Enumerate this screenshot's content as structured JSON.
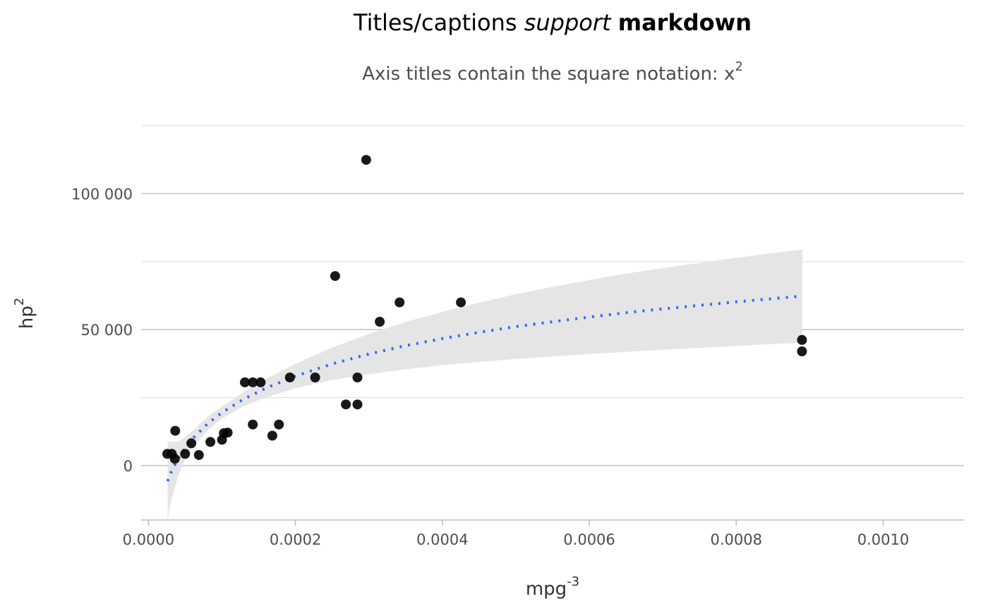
{
  "chart_data": {
    "type": "scatter",
    "title": {
      "prefix": "Titles/captions ",
      "italic": "support",
      "middle": " ",
      "bold": "markdown"
    },
    "subtitle": {
      "text": "Axis titles contain the square notation: x",
      "sup": "2"
    },
    "xlabel": {
      "text": "mpg",
      "sup": "-3"
    },
    "ylabel": {
      "text": "hp",
      "sup": "2"
    },
    "xlim": [
      -1e-05,
      0.00111
    ],
    "ylim": [
      -20000,
      125000
    ],
    "x_ticks": [
      0,
      0.0002,
      0.0004,
      0.0006,
      0.0008,
      0.001
    ],
    "x_tick_labels": [
      "0.0000",
      "0.0002",
      "0.0004",
      "0.0006",
      "0.0008",
      "0.0010"
    ],
    "y_ticks": [
      0,
      50000,
      100000
    ],
    "y_tick_labels": [
      "0",
      "50 000",
      "100 000"
    ],
    "y_minor_ticks": [
      25000,
      75000,
      125000
    ],
    "grid": true,
    "colors": {
      "points": "#000000",
      "trend": "#3366ff",
      "band": "#e5e5e5"
    },
    "points": [
      [
        2.55e-05,
        4300
      ],
      [
        3.18e-05,
        4300
      ],
      [
        3.58e-05,
        2500
      ],
      [
        3.64e-05,
        12800
      ],
      [
        4.98e-05,
        4300
      ],
      [
        5.83e-05,
        8200
      ],
      [
        6.86e-05,
        3900
      ],
      [
        8.42e-05,
        8700
      ],
      [
        0.0001001,
        9500
      ],
      [
        0.0001026,
        11900
      ],
      [
        0.0001078,
        12100
      ],
      [
        0.0001312,
        30600
      ],
      [
        0.000142,
        30600
      ],
      [
        0.000142,
        15100
      ],
      [
        0.0001526,
        30600
      ],
      [
        0.0001686,
        11000
      ],
      [
        0.0001775,
        15100
      ],
      [
        0.0001925,
        32400
      ],
      [
        0.0002269,
        32400
      ],
      [
        0.0002541,
        69700
      ],
      [
        0.0002687,
        22500
      ],
      [
        0.0002844,
        32400
      ],
      [
        0.0002844,
        22500
      ],
      [
        0.0002963,
        112400
      ],
      [
        0.0003148,
        52900
      ],
      [
        0.0003418,
        60000
      ],
      [
        0.0004252,
        60000
      ],
      [
        0.0008895,
        46200
      ],
      [
        0.0008895,
        42000
      ]
    ],
    "trend": {
      "x": [
        2.6e-05,
        3e-05,
        4e-05,
        5e-05,
        6e-05,
        8e-05,
        0.0001,
        0.00013,
        0.00016,
        0.0002,
        0.00025,
        0.0003,
        0.00035,
        0.0004,
        0.00045,
        0.0005,
        0.00055,
        0.0006,
        0.00065,
        0.0007,
        0.00075,
        0.0008,
        0.00085,
        0.00089
      ],
      "y": [
        -5700,
        -2900,
        2400,
        6500,
        9900,
        15300,
        19500,
        24500,
        28500,
        32900,
        37400,
        41000,
        44100,
        46700,
        49000,
        51100,
        52900,
        54600,
        56200,
        57600,
        58900,
        60200,
        61400,
        62300
      ],
      "lower": [
        -20000,
        -14000,
        -4000,
        2500,
        7000,
        12800,
        17300,
        21900,
        25100,
        28400,
        31400,
        33600,
        35400,
        36900,
        38100,
        39200,
        40100,
        41000,
        41800,
        42600,
        43300,
        44000,
        44700,
        45200
      ],
      "upper": [
        8600,
        8800,
        8800,
        10500,
        12800,
        17800,
        21700,
        27100,
        31900,
        37400,
        43400,
        48400,
        52800,
        56500,
        59900,
        63000,
        65700,
        68200,
        70600,
        72600,
        74500,
        76400,
        78100,
        79400
      ]
    }
  }
}
